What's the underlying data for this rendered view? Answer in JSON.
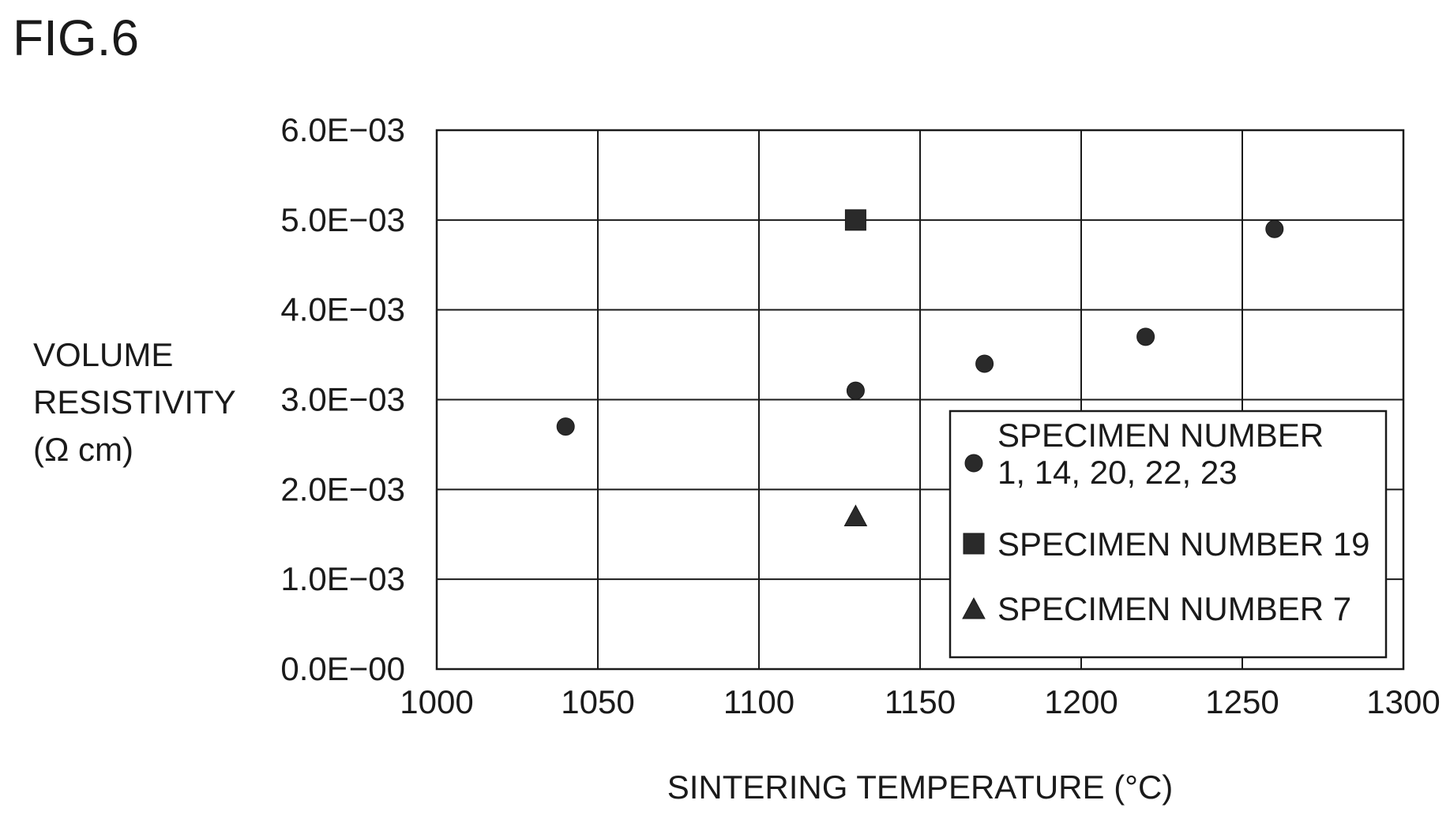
{
  "figure_label": "FIG.6",
  "chart_data": {
    "type": "scatter",
    "xlabel": "SINTERING TEMPERATURE (°C)",
    "ylabel_lines": [
      "VOLUME",
      "RESISTIVITY",
      "(Ω cm)"
    ],
    "xlim": [
      1000,
      1300
    ],
    "ylim": [
      0,
      0.006
    ],
    "x_ticks": [
      1000,
      1050,
      1100,
      1150,
      1200,
      1250,
      1300
    ],
    "x_tick_labels": [
      "1000",
      "1050",
      "1100",
      "1150",
      "1200",
      "1250",
      "1300"
    ],
    "y_ticks": [
      0,
      0.001,
      0.002,
      0.003,
      0.004,
      0.005,
      0.006
    ],
    "y_tick_labels": [
      "0.0E−00",
      "1.0E−03",
      "2.0E−03",
      "3.0E−03",
      "4.0E−03",
      "5.0E−03",
      "6.0E−03"
    ],
    "grid": true,
    "legend_placement": "bottom-right",
    "series": [
      {
        "name_lines": [
          "SPECIMEN NUMBER",
          "1, 14, 20, 22, 23"
        ],
        "marker": "circle",
        "color": "#2a2a2a",
        "points": [
          {
            "x": 1040,
            "y": 0.0027
          },
          {
            "x": 1130,
            "y": 0.0031
          },
          {
            "x": 1170,
            "y": 0.0034
          },
          {
            "x": 1220,
            "y": 0.0037
          },
          {
            "x": 1260,
            "y": 0.0049
          }
        ]
      },
      {
        "name_lines": [
          "SPECIMEN NUMBER 19"
        ],
        "marker": "square",
        "color": "#2a2a2a",
        "points": [
          {
            "x": 1130,
            "y": 0.005
          }
        ]
      },
      {
        "name_lines": [
          "SPECIMEN NUMBER 7"
        ],
        "marker": "triangle",
        "color": "#2a2a2a",
        "points": [
          {
            "x": 1130,
            "y": 0.0017
          }
        ]
      }
    ]
  }
}
